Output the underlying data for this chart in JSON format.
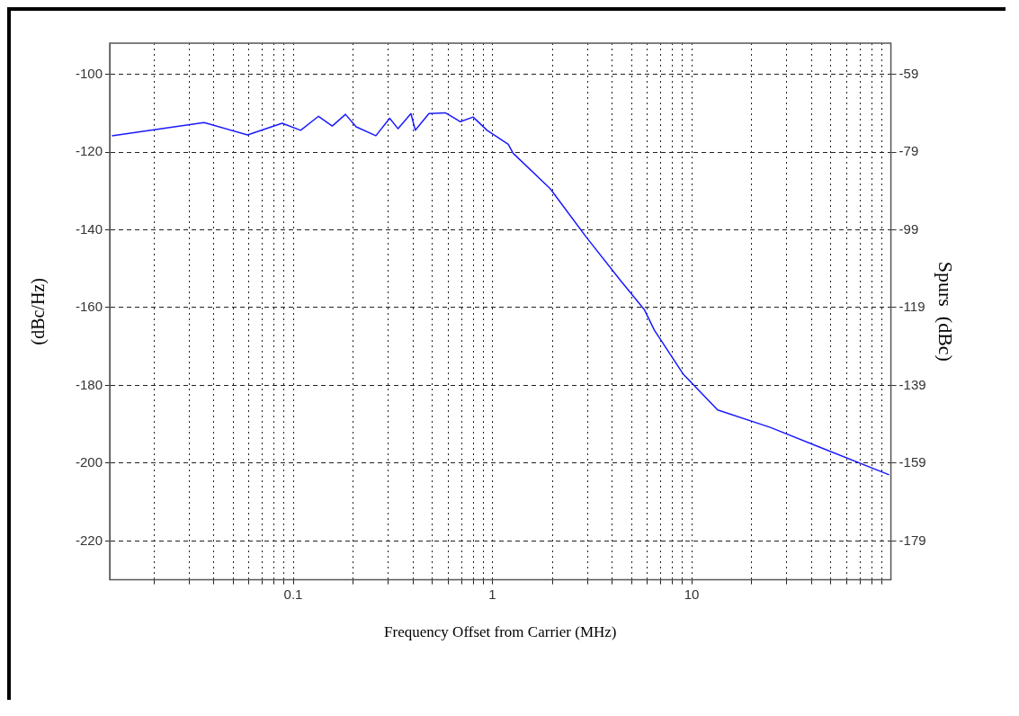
{
  "chart_data": {
    "type": "line",
    "xlabel": "Frequency Offset from Carrier (MHz)",
    "ylabel": "(dBc/Hz)",
    "y2label": "Spurs  (dBc)",
    "log": "x",
    "grid": true,
    "marker": "none",
    "line_style": "solid",
    "xlim": [
      0.012,
      100
    ],
    "xticks": [
      {
        "value": 0.02,
        "label": null
      },
      {
        "value": 0.03,
        "label": null
      },
      {
        "value": 0.04,
        "label": null
      },
      {
        "value": 0.05,
        "label": null
      },
      {
        "value": 0.06,
        "label": null
      },
      {
        "value": 0.07,
        "label": null
      },
      {
        "value": 0.08,
        "label": null
      },
      {
        "value": 0.09,
        "label": null
      },
      0.1,
      {
        "value": 0.2,
        "label": null
      },
      {
        "value": 0.3,
        "label": null
      },
      {
        "value": 0.4,
        "label": null
      },
      {
        "value": 0.5,
        "label": null
      },
      {
        "value": 0.6,
        "label": null
      },
      {
        "value": 0.7,
        "label": null
      },
      {
        "value": 0.8,
        "label": null
      },
      {
        "value": 0.9,
        "label": null
      },
      1,
      {
        "value": 2,
        "label": null
      },
      {
        "value": 3,
        "label": null
      },
      {
        "value": 4,
        "label": null
      },
      {
        "value": 5,
        "label": null
      },
      {
        "value": 6,
        "label": null
      },
      {
        "value": 7,
        "label": null
      },
      {
        "value": 8,
        "label": null
      },
      {
        "value": 9,
        "label": null
      },
      10,
      {
        "value": 20,
        "label": null
      },
      {
        "value": 30,
        "label": null
      },
      {
        "value": 40,
        "label": null
      },
      {
        "value": 50,
        "label": null
      },
      {
        "value": 60,
        "label": null
      },
      {
        "value": 70,
        "label": null
      },
      {
        "value": 80,
        "label": null
      },
      {
        "value": 90,
        "label": null
      }
    ],
    "ylim": [
      -230,
      -92
    ],
    "yticks": [
      -220,
      -200,
      -180,
      -160,
      -140,
      -120,
      -100
    ],
    "y2lim": [
      -189,
      -51
    ],
    "y2ticks": [
      -179,
      -159,
      -139,
      -119,
      -99,
      -79,
      -59
    ],
    "x": [
      0.0123,
      0.0357,
      0.059,
      0.088,
      0.109,
      0.134,
      0.157,
      0.183,
      0.207,
      0.26,
      0.305,
      0.336,
      0.39,
      0.41,
      0.48,
      0.58,
      0.69,
      0.8,
      0.94,
      1.2,
      1.27,
      1.95,
      2.94,
      4.39,
      5.8,
      6.5,
      9.1,
      13.5,
      24.8,
      45.5,
      98
    ],
    "series": [
      {
        "color": "#1a1aff",
        "values": [
          -115.8,
          -112.4,
          -115.6,
          -112.6,
          -114.4,
          -110.8,
          -113.3,
          -110.3,
          -113.5,
          -115.8,
          -111.3,
          -114,
          -110.1,
          -114.4,
          -110.1,
          -109.9,
          -112.2,
          -111,
          -114.4,
          -118,
          -120.3,
          -129.4,
          -141.7,
          -153,
          -160.6,
          -165.8,
          -177.2,
          -186.3,
          -190.8,
          -196.2,
          -203
        ]
      }
    ]
  }
}
